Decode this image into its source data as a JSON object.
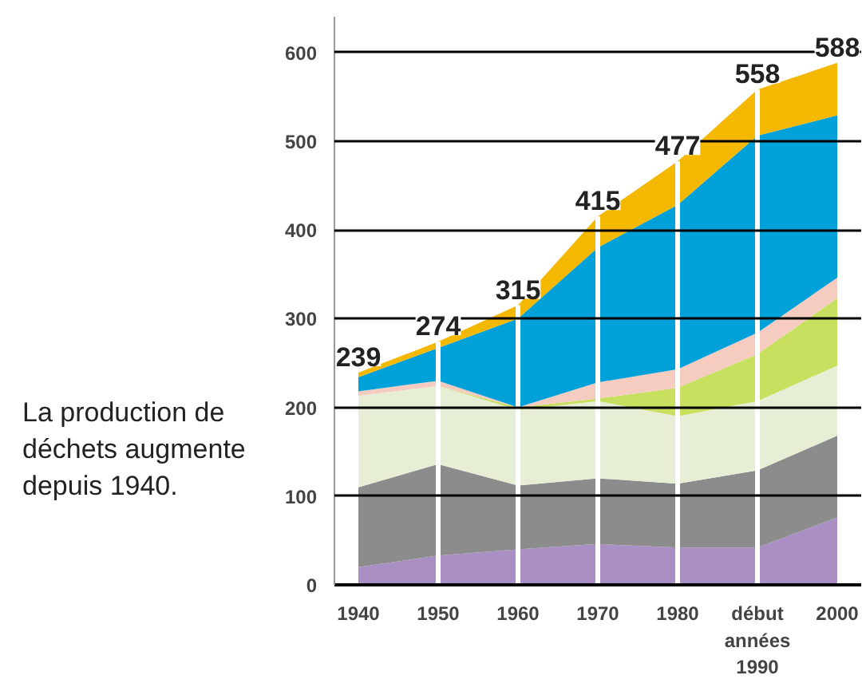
{
  "chart_data": {
    "type": "area",
    "stacked": true,
    "categories": [
      "1940",
      "1950",
      "1960",
      "1970",
      "1980",
      "début années 1990",
      "2000"
    ],
    "series": [
      {
        "color": "#a98fc4",
        "values": [
          20,
          33,
          40,
          46,
          42,
          42,
          76
        ]
      },
      {
        "color": "#8c8c8c",
        "values": [
          90,
          103,
          72,
          74,
          72,
          87,
          92
        ]
      },
      {
        "color": "#e6eed6",
        "values": [
          103,
          88,
          85,
          87,
          76,
          78,
          79
        ]
      },
      {
        "color": "#c8e060",
        "values": [
          0,
          0,
          3,
          3,
          32,
          53,
          76
        ]
      },
      {
        "color": "#f7ccc0",
        "values": [
          5,
          6,
          0,
          18,
          21,
          24,
          23
        ]
      },
      {
        "color": "#00a0d8",
        "values": [
          16,
          37,
          100,
          152,
          185,
          222,
          183
        ]
      },
      {
        "color": "#f5b800",
        "values": [
          5,
          7,
          15,
          35,
          49,
          52,
          59
        ]
      }
    ],
    "totals": [
      "239",
      "274",
      "315",
      "415",
      "477",
      "558",
      "588"
    ],
    "ylim": [
      0,
      640
    ],
    "yticks": [
      0,
      100,
      200,
      300,
      400,
      500,
      600
    ],
    "grid": true,
    "annotations": [
      "La production de déchets augmente depuis 1940."
    ]
  }
}
